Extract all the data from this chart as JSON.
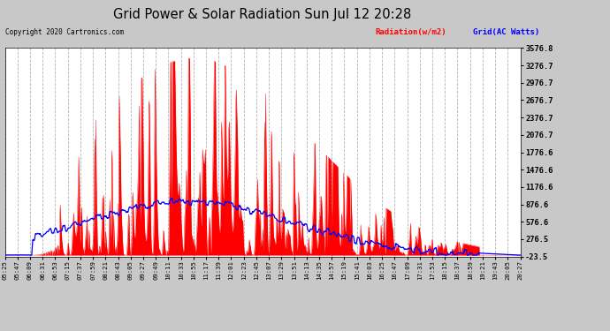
{
  "title": "Grid Power & Solar Radiation Sun Jul 12 20:28",
  "copyright": "Copyright 2020 Cartronics.com",
  "legend_radiation": "Radiation(w/m2)",
  "legend_grid": "Grid(AC Watts)",
  "yticks": [
    3576.8,
    3276.7,
    2976.7,
    2676.7,
    2376.7,
    2076.7,
    1776.6,
    1476.6,
    1176.6,
    876.6,
    576.6,
    276.5,
    -23.5
  ],
  "ymin": -23.5,
  "ymax": 3576.8,
  "bg_color": "#c8c8c8",
  "plot_bg_color": "#ffffff",
  "grid_color": "#aaaaaa",
  "radiation_color": "#ff0000",
  "grid_ac_color": "#0000ff",
  "xtick_labels": [
    "05:25",
    "05:47",
    "06:09",
    "06:31",
    "06:53",
    "07:15",
    "07:37",
    "07:59",
    "08:21",
    "08:43",
    "09:05",
    "09:27",
    "09:49",
    "10:11",
    "10:33",
    "10:55",
    "11:17",
    "11:39",
    "12:01",
    "12:23",
    "12:45",
    "13:07",
    "13:29",
    "13:51",
    "14:13",
    "14:35",
    "14:57",
    "15:19",
    "15:41",
    "16:03",
    "16:25",
    "16:47",
    "17:09",
    "17:31",
    "17:53",
    "18:15",
    "18:37",
    "18:59",
    "19:21",
    "19:43",
    "20:05",
    "20:27"
  ]
}
